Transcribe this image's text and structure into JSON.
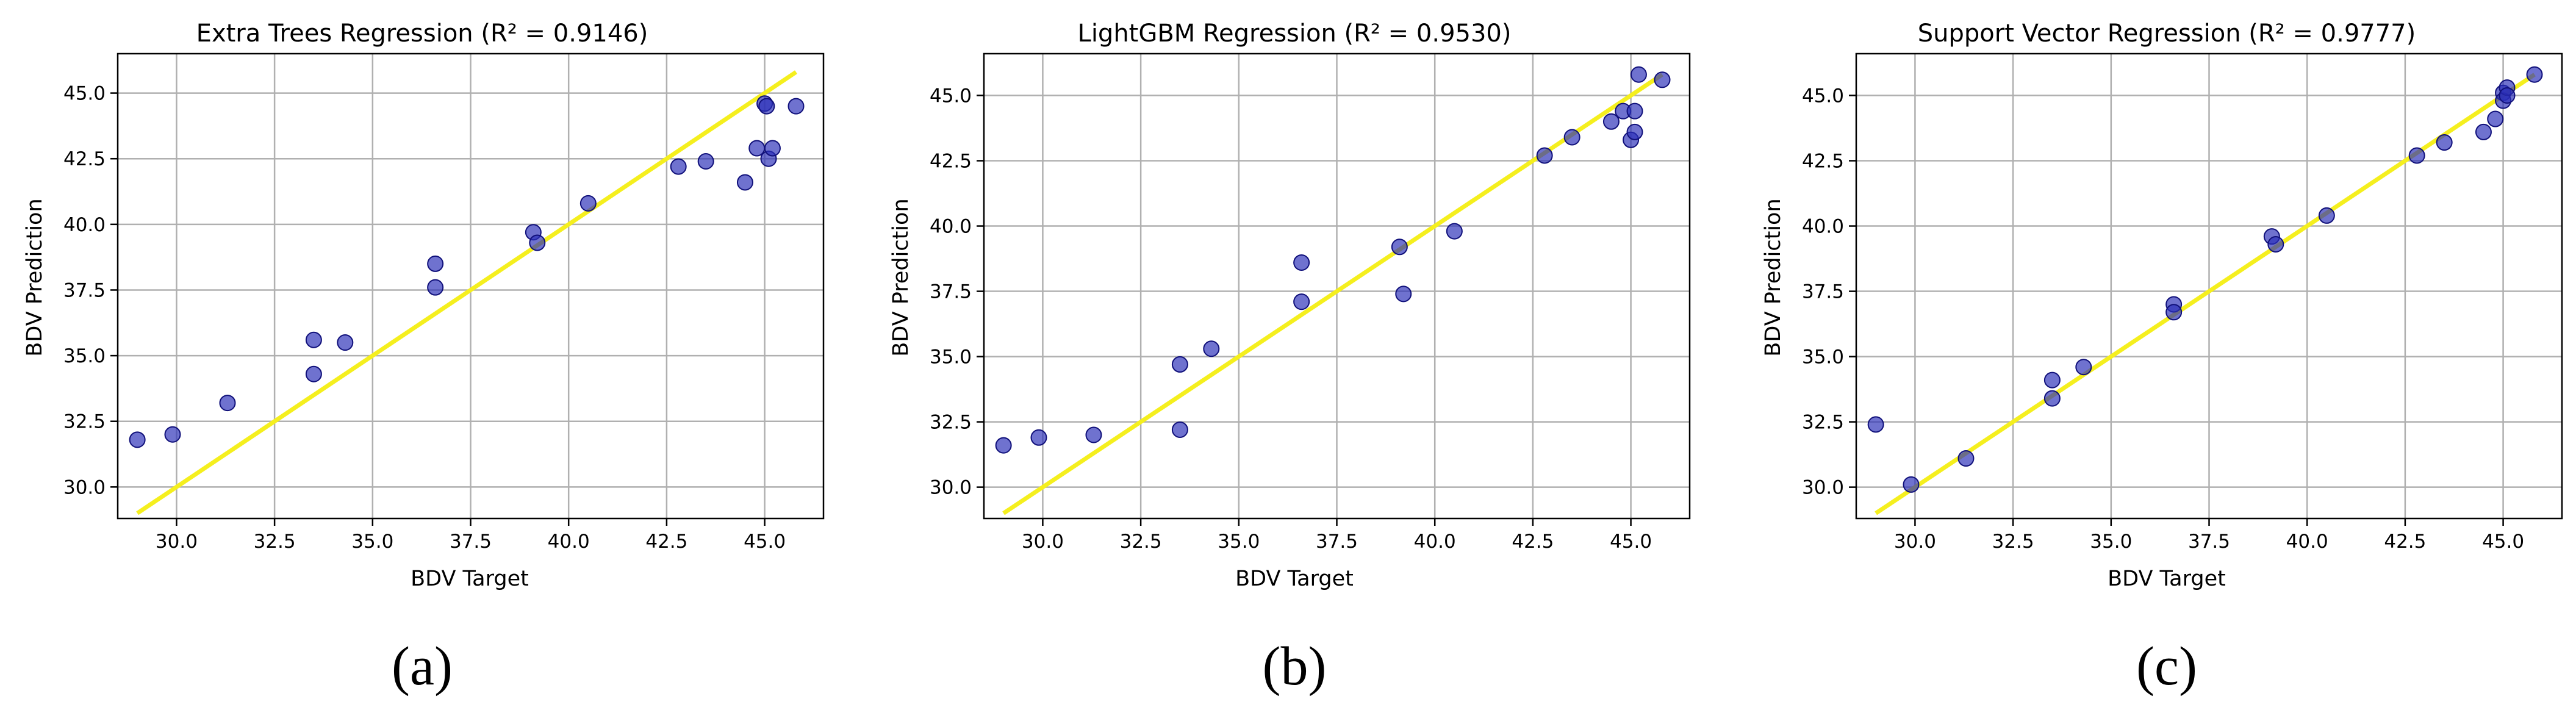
{
  "figure": {
    "captions": [
      "(a)",
      "(b)",
      "(c)"
    ]
  },
  "style": {
    "point_color": "#2b2fb8",
    "point_edge_color": "#10107a",
    "fit_line_color": "#f5ef1e",
    "grid_color": "#b0b0b0",
    "axes_color": "#000000"
  },
  "chart_data": [
    {
      "type": "scatter",
      "title": "Extra Trees Regression (R² = 0.9146)",
      "xlabel": "BDV Target",
      "ylabel": "BDV Prediction",
      "xlim": [
        28.5,
        46.5
      ],
      "ylim": [
        28.8,
        46.5
      ],
      "xticks": [
        30.0,
        32.5,
        35.0,
        37.5,
        40.0,
        42.5,
        45.0
      ],
      "yticks": [
        30.0,
        32.5,
        35.0,
        37.5,
        40.0,
        42.5,
        45.0
      ],
      "xtick_labels": [
        "30.0",
        "32.5",
        "35.0",
        "37.5",
        "40.0",
        "42.5",
        "45.0"
      ],
      "ytick_labels": [
        "30.0",
        "32.5",
        "35.0",
        "37.5",
        "40.0",
        "42.5",
        "45.0"
      ],
      "grid": true,
      "fit_line": {
        "x": [
          29.0,
          45.8
        ],
        "y": [
          29.0,
          45.8
        ]
      },
      "points": [
        {
          "x": 29.0,
          "y": 31.8
        },
        {
          "x": 29.9,
          "y": 32.0
        },
        {
          "x": 31.3,
          "y": 33.2
        },
        {
          "x": 33.5,
          "y": 35.6
        },
        {
          "x": 33.5,
          "y": 34.3
        },
        {
          "x": 34.3,
          "y": 35.5
        },
        {
          "x": 36.6,
          "y": 38.5
        },
        {
          "x": 36.6,
          "y": 37.6
        },
        {
          "x": 39.1,
          "y": 39.7
        },
        {
          "x": 39.2,
          "y": 39.3
        },
        {
          "x": 40.5,
          "y": 40.8
        },
        {
          "x": 42.8,
          "y": 42.2
        },
        {
          "x": 43.5,
          "y": 42.4
        },
        {
          "x": 44.5,
          "y": 41.6
        },
        {
          "x": 44.8,
          "y": 42.9
        },
        {
          "x": 45.0,
          "y": 44.6
        },
        {
          "x": 45.05,
          "y": 44.5
        },
        {
          "x": 45.1,
          "y": 42.5
        },
        {
          "x": 45.2,
          "y": 42.9
        },
        {
          "x": 45.8,
          "y": 44.5
        }
      ]
    },
    {
      "type": "scatter",
      "title": "LightGBM Regression (R² = 0.9530)",
      "xlabel": "BDV Target",
      "ylabel": "BDV Prediction",
      "xlim": [
        28.5,
        46.5
      ],
      "ylim": [
        28.8,
        46.6
      ],
      "xticks": [
        30.0,
        32.5,
        35.0,
        37.5,
        40.0,
        42.5,
        45.0
      ],
      "yticks": [
        30.0,
        32.5,
        35.0,
        37.5,
        40.0,
        42.5,
        45.0
      ],
      "xtick_labels": [
        "30.0",
        "32.5",
        "35.0",
        "37.5",
        "40.0",
        "42.5",
        "45.0"
      ],
      "ytick_labels": [
        "30.0",
        "32.5",
        "35.0",
        "37.5",
        "40.0",
        "42.5",
        "45.0"
      ],
      "grid": true,
      "fit_line": {
        "x": [
          29.0,
          45.8
        ],
        "y": [
          29.0,
          45.8
        ]
      },
      "points": [
        {
          "x": 29.0,
          "y": 31.6
        },
        {
          "x": 29.9,
          "y": 31.9
        },
        {
          "x": 31.3,
          "y": 32.0
        },
        {
          "x": 33.5,
          "y": 34.7
        },
        {
          "x": 33.5,
          "y": 32.2
        },
        {
          "x": 34.3,
          "y": 35.3
        },
        {
          "x": 36.6,
          "y": 38.6
        },
        {
          "x": 36.6,
          "y": 37.1
        },
        {
          "x": 39.1,
          "y": 39.2
        },
        {
          "x": 39.2,
          "y": 37.4
        },
        {
          "x": 40.5,
          "y": 39.8
        },
        {
          "x": 42.8,
          "y": 42.7
        },
        {
          "x": 43.5,
          "y": 43.4
        },
        {
          "x": 44.5,
          "y": 44.0
        },
        {
          "x": 44.8,
          "y": 44.4
        },
        {
          "x": 45.0,
          "y": 43.3
        },
        {
          "x": 45.1,
          "y": 43.6
        },
        {
          "x": 45.1,
          "y": 44.4
        },
        {
          "x": 45.2,
          "y": 45.8
        },
        {
          "x": 45.8,
          "y": 45.6
        }
      ]
    },
    {
      "type": "scatter",
      "title": "Support Vector Regression (R² = 0.9777)",
      "xlabel": "BDV Target",
      "ylabel": "BDV Prediction",
      "xlim": [
        28.5,
        46.5
      ],
      "ylim": [
        28.8,
        46.6
      ],
      "xticks": [
        30.0,
        32.5,
        35.0,
        37.5,
        40.0,
        42.5,
        45.0
      ],
      "yticks": [
        30.0,
        32.5,
        35.0,
        37.5,
        40.0,
        42.5,
        45.0
      ],
      "xtick_labels": [
        "30.0",
        "32.5",
        "35.0",
        "37.5",
        "40.0",
        "42.5",
        "45.0"
      ],
      "ytick_labels": [
        "30.0",
        "32.5",
        "35.0",
        "37.5",
        "40.0",
        "42.5",
        "45.0"
      ],
      "grid": true,
      "fit_line": {
        "x": [
          29.0,
          45.8
        ],
        "y": [
          29.0,
          45.8
        ]
      },
      "points": [
        {
          "x": 29.0,
          "y": 32.4
        },
        {
          "x": 29.9,
          "y": 30.1
        },
        {
          "x": 31.3,
          "y": 31.1
        },
        {
          "x": 33.5,
          "y": 34.1
        },
        {
          "x": 33.5,
          "y": 33.4
        },
        {
          "x": 34.3,
          "y": 34.6
        },
        {
          "x": 36.6,
          "y": 37.0
        },
        {
          "x": 36.6,
          "y": 36.7
        },
        {
          "x": 39.1,
          "y": 39.6
        },
        {
          "x": 39.2,
          "y": 39.3
        },
        {
          "x": 40.5,
          "y": 40.4
        },
        {
          "x": 42.8,
          "y": 42.7
        },
        {
          "x": 43.5,
          "y": 43.2
        },
        {
          "x": 44.5,
          "y": 43.6
        },
        {
          "x": 44.8,
          "y": 44.1
        },
        {
          "x": 45.0,
          "y": 45.1
        },
        {
          "x": 45.0,
          "y": 44.8
        },
        {
          "x": 45.1,
          "y": 45.3
        },
        {
          "x": 45.1,
          "y": 45.0
        },
        {
          "x": 45.8,
          "y": 45.8
        }
      ]
    }
  ]
}
